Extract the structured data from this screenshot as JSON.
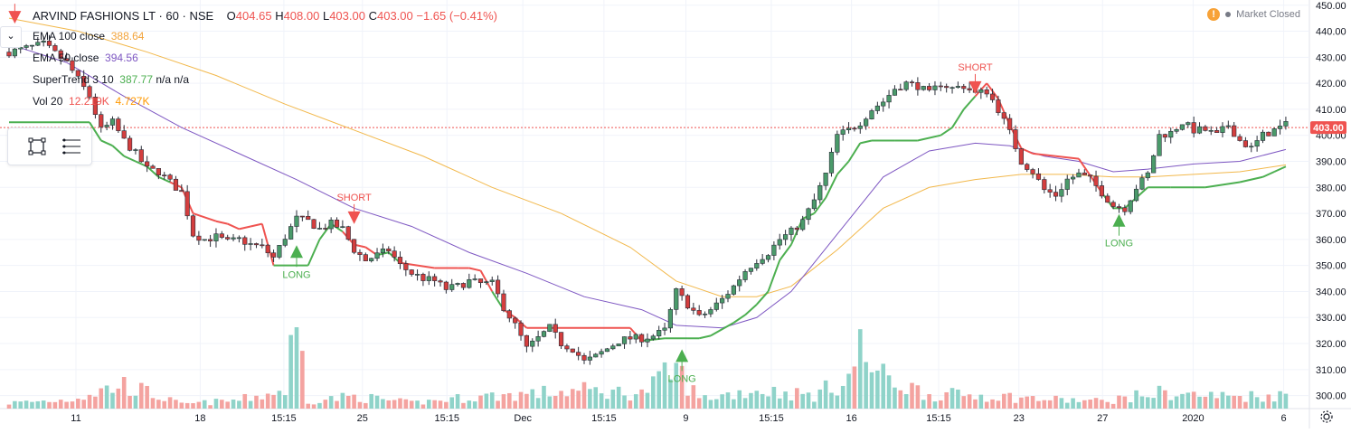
{
  "header": {
    "symbol": "ARVIND FASHIONS LT",
    "interval": "60",
    "exchange": "NSE",
    "separator": "·",
    "open_label": "O",
    "open": "404.65",
    "high_label": "H",
    "high": "408.00",
    "low_label": "L",
    "low": "403.00",
    "close_label": "C",
    "close": "403.00",
    "change": "−1.65 (−0.41%)"
  },
  "indicators": [
    {
      "label": "EMA 100 close",
      "value": "388.64",
      "color": "#f2b84b"
    },
    {
      "label": "EMA 50 close",
      "value": "394.56",
      "color": "#7e57c2"
    },
    {
      "label": "SuperTrend 3 10",
      "value": "387.77",
      "extra": "n/a  n/a",
      "color": "#4caf50"
    },
    {
      "label": "Vol 20",
      "value": "12.219K",
      "value2": "4.727K",
      "color": "#ef5350",
      "color2": "#ff9800"
    }
  ],
  "status": {
    "market": "Market Closed",
    "warning": "!"
  },
  "colors": {
    "up": "#26a69a",
    "down": "#ef5350",
    "supertrend_up": "#4caf50",
    "supertrend_down": "#ef5350",
    "ema100": "#f2b84b",
    "ema50": "#7e57c2",
    "price_line": "#ef5350",
    "up_body": "#4a9a6a",
    "down_body": "#d43e3e"
  },
  "icons": {
    "toolbox": [
      "rectangle-select-icon",
      "lines-menu-icon"
    ],
    "collapse": "chevron-down-icon",
    "settings": "gear-icon"
  },
  "chart_data": {
    "type": "candlestick",
    "title": "ARVIND FASHIONS LT · 60 · NSE",
    "ylim": [
      295,
      452
    ],
    "y_ticks": [
      300,
      310,
      320,
      330,
      340,
      350,
      360,
      370,
      380,
      390,
      400,
      410,
      420,
      430,
      440,
      450
    ],
    "y_tick_labels": [
      "300.00",
      "310.00",
      "320.00",
      "330.00",
      "340.00",
      "350.00",
      "360.00",
      "370.00",
      "380.00",
      "390.00",
      "400.00",
      "410.00",
      "420.00",
      "430.00",
      "440.00",
      "450.00"
    ],
    "last_price": 403.0,
    "last_price_label": "403.00",
    "x_labels": [
      "11",
      "18",
      "15:15",
      "25",
      "15:15",
      "Dec",
      "15:15",
      "9",
      "15:15",
      "16",
      "15:15",
      "23",
      "27",
      "2020",
      "6"
    ],
    "x_label_positions": [
      0.0,
      0.144,
      0.241,
      0.332,
      0.43,
      0.518,
      0.612,
      0.707,
      0.806,
      0.899,
      1.0,
      1.093,
      1.19,
      1.295,
      1.4
    ],
    "price_path": [
      [
        0,
        432
      ],
      [
        6,
        435
      ],
      [
        10,
        428
      ],
      [
        14,
        415
      ],
      [
        16,
        402
      ],
      [
        18,
        405
      ],
      [
        20,
        398
      ],
      [
        22,
        393
      ],
      [
        24,
        387
      ],
      [
        26,
        386
      ],
      [
        28,
        382
      ],
      [
        30,
        378
      ],
      [
        32,
        362
      ],
      [
        34,
        360
      ],
      [
        36,
        361
      ],
      [
        38,
        359
      ],
      [
        40,
        360
      ],
      [
        42,
        358
      ],
      [
        44,
        357
      ],
      [
        46,
        353
      ],
      [
        48,
        361
      ],
      [
        50,
        368
      ],
      [
        52,
        367
      ],
      [
        54,
        364
      ],
      [
        56,
        366
      ],
      [
        58,
        364
      ],
      [
        60,
        356
      ],
      [
        62,
        352
      ],
      [
        64,
        354
      ],
      [
        66,
        356
      ],
      [
        68,
        350
      ],
      [
        70,
        347
      ],
      [
        72,
        345
      ],
      [
        74,
        344
      ],
      [
        76,
        341
      ],
      [
        78,
        342
      ],
      [
        80,
        344
      ],
      [
        82,
        343
      ],
      [
        84,
        343
      ],
      [
        86,
        334
      ],
      [
        88,
        327
      ],
      [
        90,
        318
      ],
      [
        92,
        322
      ],
      [
        94,
        326
      ],
      [
        96,
        320
      ],
      [
        98,
        318
      ],
      [
        100,
        313
      ],
      [
        102,
        315
      ],
      [
        104,
        318
      ],
      [
        106,
        321
      ],
      [
        108,
        322
      ],
      [
        110,
        322
      ],
      [
        112,
        323
      ],
      [
        114,
        325
      ],
      [
        116,
        340
      ],
      [
        118,
        335
      ],
      [
        120,
        330
      ],
      [
        122,
        333
      ],
      [
        124,
        337
      ],
      [
        126,
        342
      ],
      [
        128,
        348
      ],
      [
        130,
        352
      ],
      [
        132,
        355
      ],
      [
        134,
        360
      ],
      [
        136,
        363
      ],
      [
        138,
        367
      ],
      [
        140,
        375
      ],
      [
        142,
        385
      ],
      [
        144,
        400
      ],
      [
        146,
        402
      ],
      [
        148,
        405
      ],
      [
        150,
        410
      ],
      [
        152,
        413
      ],
      [
        154,
        418
      ],
      [
        156,
        420
      ],
      [
        158,
        419
      ],
      [
        160,
        416
      ],
      [
        162,
        420
      ],
      [
        164,
        418
      ],
      [
        166,
        419
      ],
      [
        168,
        416
      ],
      [
        170,
        417
      ],
      [
        172,
        410
      ],
      [
        174,
        401
      ],
      [
        176,
        390
      ],
      [
        178,
        386
      ],
      [
        180,
        379
      ],
      [
        182,
        377
      ],
      [
        184,
        383
      ],
      [
        186,
        385
      ],
      [
        188,
        383
      ],
      [
        190,
        378
      ],
      [
        192,
        373
      ],
      [
        194,
        372
      ],
      [
        196,
        380
      ],
      [
        198,
        385
      ],
      [
        200,
        400
      ],
      [
        202,
        401
      ],
      [
        204,
        405
      ],
      [
        206,
        402
      ],
      [
        208,
        402
      ],
      [
        210,
        400
      ],
      [
        212,
        404
      ],
      [
        214,
        398
      ],
      [
        216,
        395
      ],
      [
        218,
        400
      ],
      [
        220,
        402
      ],
      [
        222,
        404
      ]
    ],
    "volume_path": [
      [
        0,
        2.0
      ],
      [
        10,
        3.1
      ],
      [
        20,
        8.5
      ],
      [
        30,
        1.5
      ],
      [
        40,
        3.0
      ],
      [
        48,
        6.5
      ],
      [
        50,
        34.5
      ],
      [
        52,
        2.7
      ],
      [
        60,
        4.3
      ],
      [
        70,
        2.0
      ],
      [
        80,
        4.0
      ],
      [
        90,
        5.2
      ],
      [
        100,
        6.4
      ],
      [
        110,
        5.4
      ],
      [
        116,
        14.0
      ],
      [
        120,
        3.5
      ],
      [
        130,
        6.6
      ],
      [
        140,
        4.6
      ],
      [
        146,
        11.0
      ],
      [
        148,
        21.0
      ],
      [
        150,
        14.8
      ],
      [
        152,
        11.0
      ],
      [
        160,
        5.0
      ],
      [
        170,
        4.7
      ],
      [
        180,
        3.3
      ],
      [
        190,
        2.6
      ],
      [
        200,
        5.6
      ],
      [
        210,
        4.4
      ],
      [
        222,
        4.7
      ]
    ],
    "supertrend": [
      [
        0,
        405
      ],
      [
        14,
        405
      ],
      [
        16,
        398
      ],
      [
        18,
        396
      ],
      [
        20,
        392
      ],
      [
        22,
        390
      ],
      [
        24,
        388
      ],
      [
        26,
        384
      ],
      [
        28,
        382
      ],
      [
        30,
        380
      ],
      [
        32,
        370
      ],
      [
        36,
        367
      ],
      [
        38,
        366
      ],
      [
        40,
        364
      ],
      [
        42,
        365
      ],
      [
        44,
        366
      ],
      [
        46,
        350
      ],
      [
        52,
        350
      ],
      [
        54,
        360
      ],
      [
        56,
        366
      ],
      [
        58,
        363
      ],
      [
        60,
        358
      ],
      [
        62,
        357
      ],
      [
        64,
        354
      ],
      [
        66,
        355
      ],
      [
        68,
        351
      ],
      [
        74,
        349
      ],
      [
        78,
        349
      ],
      [
        80,
        349
      ],
      [
        82,
        348
      ],
      [
        84,
        340
      ],
      [
        86,
        333
      ],
      [
        88,
        330
      ],
      [
        90,
        326
      ],
      [
        100,
        326
      ],
      [
        108,
        326
      ],
      [
        110,
        321
      ],
      [
        114,
        322
      ],
      [
        118,
        322
      ],
      [
        120,
        322
      ],
      [
        122,
        323
      ],
      [
        126,
        328
      ],
      [
        128,
        331
      ],
      [
        130,
        335
      ],
      [
        132,
        340
      ],
      [
        134,
        352
      ],
      [
        136,
        358
      ],
      [
        138,
        368
      ],
      [
        140,
        370
      ],
      [
        142,
        376
      ],
      [
        144,
        385
      ],
      [
        146,
        390
      ],
      [
        148,
        397
      ],
      [
        150,
        398
      ],
      [
        154,
        398
      ],
      [
        158,
        398
      ],
      [
        162,
        400
      ],
      [
        164,
        403
      ],
      [
        166,
        410
      ],
      [
        168,
        415
      ],
      [
        170,
        420
      ],
      [
        172,
        414
      ],
      [
        174,
        404
      ],
      [
        176,
        395
      ],
      [
        178,
        393
      ],
      [
        182,
        392
      ],
      [
        186,
        391
      ],
      [
        190,
        378
      ],
      [
        192,
        372
      ],
      [
        194,
        372
      ],
      [
        196,
        376
      ],
      [
        198,
        380
      ],
      [
        202,
        380
      ],
      [
        208,
        380
      ],
      [
        214,
        382
      ],
      [
        218,
        384
      ],
      [
        220,
        386
      ],
      [
        222,
        388
      ]
    ],
    "ema50": [
      [
        0,
        435
      ],
      [
        10,
        428
      ],
      [
        20,
        415
      ],
      [
        30,
        403
      ],
      [
        40,
        393
      ],
      [
        50,
        383
      ],
      [
        60,
        372
      ],
      [
        70,
        365
      ],
      [
        80,
        355
      ],
      [
        90,
        347
      ],
      [
        100,
        338
      ],
      [
        110,
        333
      ],
      [
        116,
        327
      ],
      [
        124,
        326
      ],
      [
        130,
        330
      ],
      [
        136,
        340
      ],
      [
        144,
        362
      ],
      [
        152,
        384
      ],
      [
        160,
        394
      ],
      [
        168,
        397
      ],
      [
        174,
        396
      ],
      [
        180,
        392
      ],
      [
        186,
        390
      ],
      [
        192,
        386
      ],
      [
        198,
        387
      ],
      [
        206,
        389
      ],
      [
        214,
        390
      ],
      [
        222,
        394.56
      ]
    ],
    "ema100": [
      [
        0,
        445
      ],
      [
        12,
        440
      ],
      [
        24,
        432
      ],
      [
        36,
        423
      ],
      [
        48,
        412
      ],
      [
        60,
        402
      ],
      [
        72,
        392
      ],
      [
        84,
        380
      ],
      [
        96,
        370
      ],
      [
        108,
        357
      ],
      [
        116,
        344
      ],
      [
        124,
        338
      ],
      [
        130,
        338
      ],
      [
        136,
        342
      ],
      [
        144,
        356
      ],
      [
        152,
        372
      ],
      [
        160,
        380
      ],
      [
        168,
        383
      ],
      [
        176,
        385
      ],
      [
        184,
        385
      ],
      [
        192,
        384
      ],
      [
        198,
        384
      ],
      [
        206,
        385
      ],
      [
        214,
        386
      ],
      [
        222,
        388.64
      ]
    ],
    "signals": [
      {
        "type": "SHORT",
        "x": 1,
        "y": 445
      },
      {
        "type": "LONG",
        "x": 50,
        "y": 355
      },
      {
        "type": "SHORT",
        "x": 60,
        "y": 368
      },
      {
        "type": "LONG",
        "x": 117,
        "y": 315
      },
      {
        "type": "SHORT",
        "x": 168,
        "y": 418
      },
      {
        "type": "LONG",
        "x": 193,
        "y": 367
      }
    ]
  }
}
